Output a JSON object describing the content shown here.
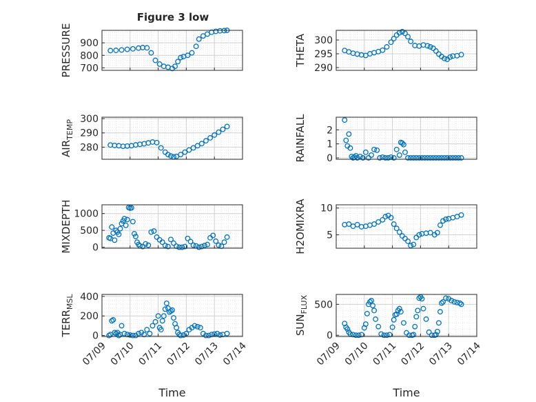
{
  "figure_title": "Figure 3 low",
  "colors": {
    "marker": "#0072BD",
    "axis": "#262626",
    "grid": "#d0d0d0",
    "minor_grid": "#e6e6e6"
  },
  "chart_data": [
    {
      "id": "pressure",
      "type": "scatter",
      "ylabel": "PRESSURE",
      "ylabel_sub": "",
      "yticks": [
        700,
        800,
        900
      ],
      "ytick_labels": [
        "700",
        "800",
        "900"
      ],
      "ylim": [
        680,
        1000
      ],
      "xlim": [
        "2017-07-09",
        "2017-07-14"
      ],
      "x_start": "2017-07-09",
      "show_xticklabels": false,
      "series": [
        {
          "x": [
            0.3,
            0.5,
            0.7,
            0.9,
            1.1,
            1.3,
            1.45,
            1.6,
            1.75,
            1.9,
            2.05,
            2.2,
            2.35,
            2.5,
            2.6,
            2.7,
            2.8,
            2.9,
            3.05,
            3.2,
            3.35,
            3.45,
            3.6,
            3.75,
            3.9,
            4.05,
            4.2,
            4.35,
            4.45
          ],
          "y": [
            838,
            840,
            843,
            848,
            852,
            858,
            862,
            860,
            820,
            760,
            730,
            712,
            705,
            695,
            712,
            750,
            782,
            790,
            800,
            820,
            872,
            930,
            955,
            970,
            985,
            992,
            996,
            998,
            1000
          ]
        }
      ]
    },
    {
      "id": "theta",
      "type": "scatter",
      "ylabel": "THETA",
      "ylabel_sub": "",
      "yticks": [
        290,
        295,
        300
      ],
      "ytick_labels": [
        "290",
        "295",
        "300"
      ],
      "ylim": [
        289,
        303.5
      ],
      "xlim": [
        "2017-07-09",
        "2017-07-14"
      ],
      "x_start": "2017-07-09",
      "show_xticklabels": false,
      "series": [
        {
          "x": [
            0.3,
            0.45,
            0.6,
            0.75,
            0.9,
            1.05,
            1.2,
            1.35,
            1.5,
            1.65,
            1.8,
            1.95,
            2.05,
            2.15,
            2.25,
            2.35,
            2.45,
            2.55,
            2.65,
            2.8,
            2.95,
            3.1,
            3.25,
            3.35,
            3.45,
            3.55,
            3.65,
            3.75,
            3.85,
            3.95,
            4.05,
            4.15,
            4.3,
            4.45
          ],
          "y": [
            296.2,
            295.7,
            295.2,
            294.9,
            294.6,
            294.4,
            295.0,
            295.4,
            295.8,
            296.3,
            297.5,
            299.2,
            300.5,
            301.8,
            302.6,
            303.0,
            302.4,
            301.2,
            299.5,
            298.0,
            297.8,
            298.2,
            297.9,
            297.5,
            297.0,
            296.0,
            294.9,
            294.0,
            293.3,
            293.0,
            293.8,
            294.2,
            294.3,
            294.7
          ]
        }
      ]
    },
    {
      "id": "air_temp",
      "type": "scatter",
      "ylabel": "AIR",
      "ylabel_sub": "TEMP",
      "yticks": [
        280,
        290,
        300
      ],
      "ytick_labels": [
        "280",
        "290",
        "300"
      ],
      "ylim": [
        271.5,
        301
      ],
      "xlim": [
        "2017-07-09",
        "2017-07-14"
      ],
      "x_start": "2017-07-09",
      "show_xticklabels": false,
      "series": [
        {
          "x": [
            0.3,
            0.45,
            0.6,
            0.75,
            0.9,
            1.05,
            1.2,
            1.35,
            1.5,
            1.65,
            1.8,
            1.95,
            2.1,
            2.25,
            2.35,
            2.45,
            2.55,
            2.65,
            2.8,
            2.95,
            3.1,
            3.25,
            3.4,
            3.55,
            3.7,
            3.85,
            4.0,
            4.15,
            4.3,
            4.45
          ],
          "y": [
            281.5,
            281.2,
            281.0,
            280.6,
            280.8,
            281.0,
            281.6,
            282.0,
            282.4,
            283.0,
            283.6,
            283.2,
            279.5,
            276.5,
            274.8,
            273.8,
            273.2,
            273.5,
            274.8,
            276.5,
            278.0,
            279.5,
            281.0,
            282.5,
            284.5,
            286.5,
            288.5,
            290.5,
            292.5,
            294.5
          ]
        }
      ]
    },
    {
      "id": "rainfall",
      "type": "scatter",
      "ylabel": "RAINFALL",
      "ylabel_sub": "",
      "yticks": [
        0,
        1,
        2
      ],
      "ytick_labels": [
        "0",
        "1",
        "2"
      ],
      "ylim": [
        -0.1,
        2.9
      ],
      "xlim": [
        "2017-07-09",
        "2017-07-14"
      ],
      "x_start": "2017-07-09",
      "show_xticklabels": false,
      "series": [
        {
          "x": [
            0.3,
            0.35,
            0.4,
            0.45,
            0.5,
            0.55,
            0.6,
            0.65,
            0.7,
            0.75,
            0.85,
            0.95,
            1.05,
            1.15,
            1.25,
            1.35,
            1.45,
            1.55,
            1.65,
            1.75,
            1.85,
            1.95,
            2.05,
            2.15,
            2.25,
            2.3,
            2.35,
            2.4,
            2.45,
            2.55,
            2.65,
            2.75,
            2.85,
            2.95,
            3.05,
            3.15,
            3.25,
            3.35,
            3.45,
            3.55,
            3.65,
            3.75,
            3.85,
            3.95,
            4.05,
            4.15,
            4.25,
            4.35,
            4.45
          ],
          "y": [
            2.7,
            1.25,
            0.85,
            1.7,
            0.7,
            0.1,
            0.0,
            0.05,
            0.15,
            0.0,
            0.1,
            0.0,
            0.4,
            0.0,
            0.2,
            0.6,
            0.55,
            0.0,
            0.05,
            0.0,
            0.0,
            0.05,
            0.0,
            0.6,
            0.2,
            1.1,
            1.05,
            0.95,
            0.4,
            0.0,
            0.0,
            0.0,
            0.0,
            0.0,
            0.0,
            0.0,
            0.0,
            0.0,
            0.0,
            0.0,
            0.0,
            0.0,
            0.0,
            0.0,
            0.0,
            0.0,
            0.0,
            0.0,
            0.0
          ]
        }
      ]
    },
    {
      "id": "mixdepth",
      "type": "scatter",
      "ylabel": "MIXDEPTH",
      "ylabel_sub": "",
      "yticks": [
        0,
        500,
        1000
      ],
      "ytick_labels": [
        "0",
        "500",
        "1000"
      ],
      "ylim": [
        -30,
        1260
      ],
      "xlim": [
        "2017-07-09",
        "2017-07-14"
      ],
      "x_start": "2017-07-09",
      "show_xticklabels": false,
      "series": [
        {
          "x": [
            0.25,
            0.3,
            0.35,
            0.4,
            0.45,
            0.5,
            0.55,
            0.6,
            0.65,
            0.7,
            0.75,
            0.8,
            0.85,
            0.9,
            0.95,
            1.0,
            1.05,
            1.1,
            1.15,
            1.2,
            1.25,
            1.3,
            1.35,
            1.45,
            1.55,
            1.65,
            1.75,
            1.85,
            1.95,
            2.05,
            2.15,
            2.25,
            2.35,
            2.45,
            2.55,
            2.65,
            2.75,
            2.85,
            2.95,
            3.05,
            3.15,
            3.25,
            3.35,
            3.45,
            3.55,
            3.65,
            3.75,
            3.85,
            3.95,
            4.05,
            4.15,
            4.25,
            4.35,
            4.45
          ],
          "y": [
            280,
            260,
            600,
            420,
            210,
            500,
            450,
            380,
            550,
            700,
            780,
            850,
            650,
            820,
            1180,
            1160,
            1170,
            760,
            400,
            320,
            150,
            80,
            40,
            20,
            100,
            60,
            450,
            480,
            300,
            220,
            150,
            50,
            20,
            230,
            120,
            30,
            0,
            0,
            20,
            260,
            170,
            60,
            40,
            0,
            20,
            50,
            80,
            280,
            350,
            180,
            60,
            30,
            150,
            300
          ]
        }
      ]
    },
    {
      "id": "h2omixra",
      "type": "scatter",
      "ylabel": "H2OMIXRA",
      "ylabel_sub": "",
      "yticks": [
        5,
        10
      ],
      "ytick_labels": [
        "5",
        "10"
      ],
      "ylim": [
        2.5,
        10.6
      ],
      "xlim": [
        "2017-07-09",
        "2017-07-14"
      ],
      "x_start": "2017-07-09",
      "show_xticklabels": false,
      "series": [
        {
          "x": [
            0.3,
            0.45,
            0.6,
            0.75,
            0.9,
            1.05,
            1.2,
            1.35,
            1.5,
            1.65,
            1.75,
            1.85,
            1.95,
            2.05,
            2.15,
            2.25,
            2.35,
            2.45,
            2.55,
            2.65,
            2.75,
            2.85,
            2.95,
            3.05,
            3.2,
            3.35,
            3.5,
            3.6,
            3.7,
            3.8,
            3.9,
            4.0,
            4.15,
            4.3,
            4.45
          ],
          "y": [
            6.9,
            7.0,
            6.6,
            6.9,
            6.5,
            6.6,
            6.8,
            7.0,
            7.4,
            7.8,
            8.4,
            8.6,
            8.2,
            7.0,
            6.2,
            5.5,
            4.8,
            4.3,
            3.8,
            3.0,
            3.2,
            4.5,
            5.0,
            5.2,
            5.3,
            5.4,
            5.0,
            5.4,
            6.8,
            7.6,
            7.9,
            8.0,
            8.2,
            8.4,
            8.7
          ]
        }
      ]
    },
    {
      "id": "terr_msl",
      "type": "scatter",
      "ylabel": "TERR",
      "ylabel_sub": "MSL",
      "yticks": [
        0,
        200,
        400
      ],
      "ytick_labels": [
        "0",
        "200",
        "400"
      ],
      "ylim": [
        -10,
        420
      ],
      "xlim": [
        "2017-07-09",
        "2017-07-14"
      ],
      "x_start": "2017-07-09",
      "show_xticklabels": true,
      "xticks": [
        0,
        1,
        2,
        3,
        4,
        5
      ],
      "xtick_labels": [
        "07/09",
        "07/10",
        "07/11",
        "07/12",
        "07/13",
        "07/14"
      ],
      "xlabel": "Time",
      "series": [
        {
          "x": [
            0.25,
            0.3,
            0.35,
            0.4,
            0.45,
            0.5,
            0.55,
            0.6,
            0.65,
            0.7,
            0.8,
            0.9,
            1.0,
            1.1,
            1.2,
            1.3,
            1.4,
            1.5,
            1.6,
            1.7,
            1.8,
            1.9,
            2.0,
            2.05,
            2.1,
            2.15,
            2.2,
            2.25,
            2.3,
            2.35,
            2.4,
            2.45,
            2.5,
            2.55,
            2.6,
            2.65,
            2.7,
            2.75,
            2.8,
            2.9,
            3.0,
            3.1,
            3.2,
            3.3,
            3.4,
            3.5,
            3.6,
            3.7,
            3.8,
            3.9,
            4.0,
            4.1,
            4.2,
            4.3,
            4.45
          ],
          "y": [
            0,
            10,
            150,
            160,
            30,
            20,
            30,
            0,
            10,
            100,
            20,
            10,
            5,
            0,
            0,
            20,
            30,
            10,
            60,
            20,
            100,
            140,
            200,
            80,
            60,
            150,
            200,
            270,
            330,
            280,
            240,
            250,
            260,
            180,
            120,
            80,
            30,
            10,
            0,
            5,
            20,
            60,
            80,
            100,
            90,
            80,
            20,
            0,
            0,
            10,
            15,
            20,
            5,
            10,
            20
          ]
        }
      ]
    },
    {
      "id": "sun_flux",
      "type": "scatter",
      "ylabel": "SUN",
      "ylabel_sub": "FLUX",
      "yticks": [
        0,
        500
      ],
      "ytick_labels": [
        "0",
        "500"
      ],
      "ylim": [
        -20,
        660
      ],
      "xlim": [
        "2017-07-09",
        "2017-07-14"
      ],
      "x_start": "2017-07-09",
      "show_xticklabels": true,
      "xticks": [
        0,
        1,
        2,
        3,
        4,
        5
      ],
      "xtick_labels": [
        "07/09",
        "07/10",
        "07/11",
        "07/12",
        "07/13",
        "07/14"
      ],
      "xlabel": "Time",
      "series": [
        {
          "x": [
            0.3,
            0.35,
            0.4,
            0.45,
            0.5,
            0.6,
            0.7,
            0.8,
            0.9,
            1.0,
            1.05,
            1.1,
            1.15,
            1.2,
            1.25,
            1.3,
            1.35,
            1.4,
            1.5,
            1.6,
            1.7,
            1.8,
            1.9,
            2.0,
            2.05,
            2.1,
            2.15,
            2.2,
            2.25,
            2.3,
            2.4,
            2.5,
            2.6,
            2.7,
            2.75,
            2.8,
            2.85,
            2.9,
            2.95,
            3.0,
            3.05,
            3.1,
            3.2,
            3.3,
            3.4,
            3.5,
            3.55,
            3.6,
            3.65,
            3.7,
            3.75,
            3.8,
            3.9,
            4.0,
            4.1,
            4.2,
            4.3,
            4.4,
            4.45
          ],
          "y": [
            190,
            130,
            100,
            50,
            20,
            10,
            0,
            0,
            10,
            120,
            180,
            350,
            500,
            540,
            560,
            480,
            400,
            260,
            140,
            20,
            0,
            0,
            10,
            130,
            250,
            330,
            340,
            400,
            430,
            380,
            200,
            40,
            0,
            0,
            10,
            140,
            300,
            400,
            600,
            620,
            590,
            430,
            260,
            50,
            0,
            0,
            10,
            60,
            200,
            380,
            520,
            540,
            600,
            590,
            560,
            540,
            530,
            520,
            500
          ]
        }
      ]
    }
  ]
}
